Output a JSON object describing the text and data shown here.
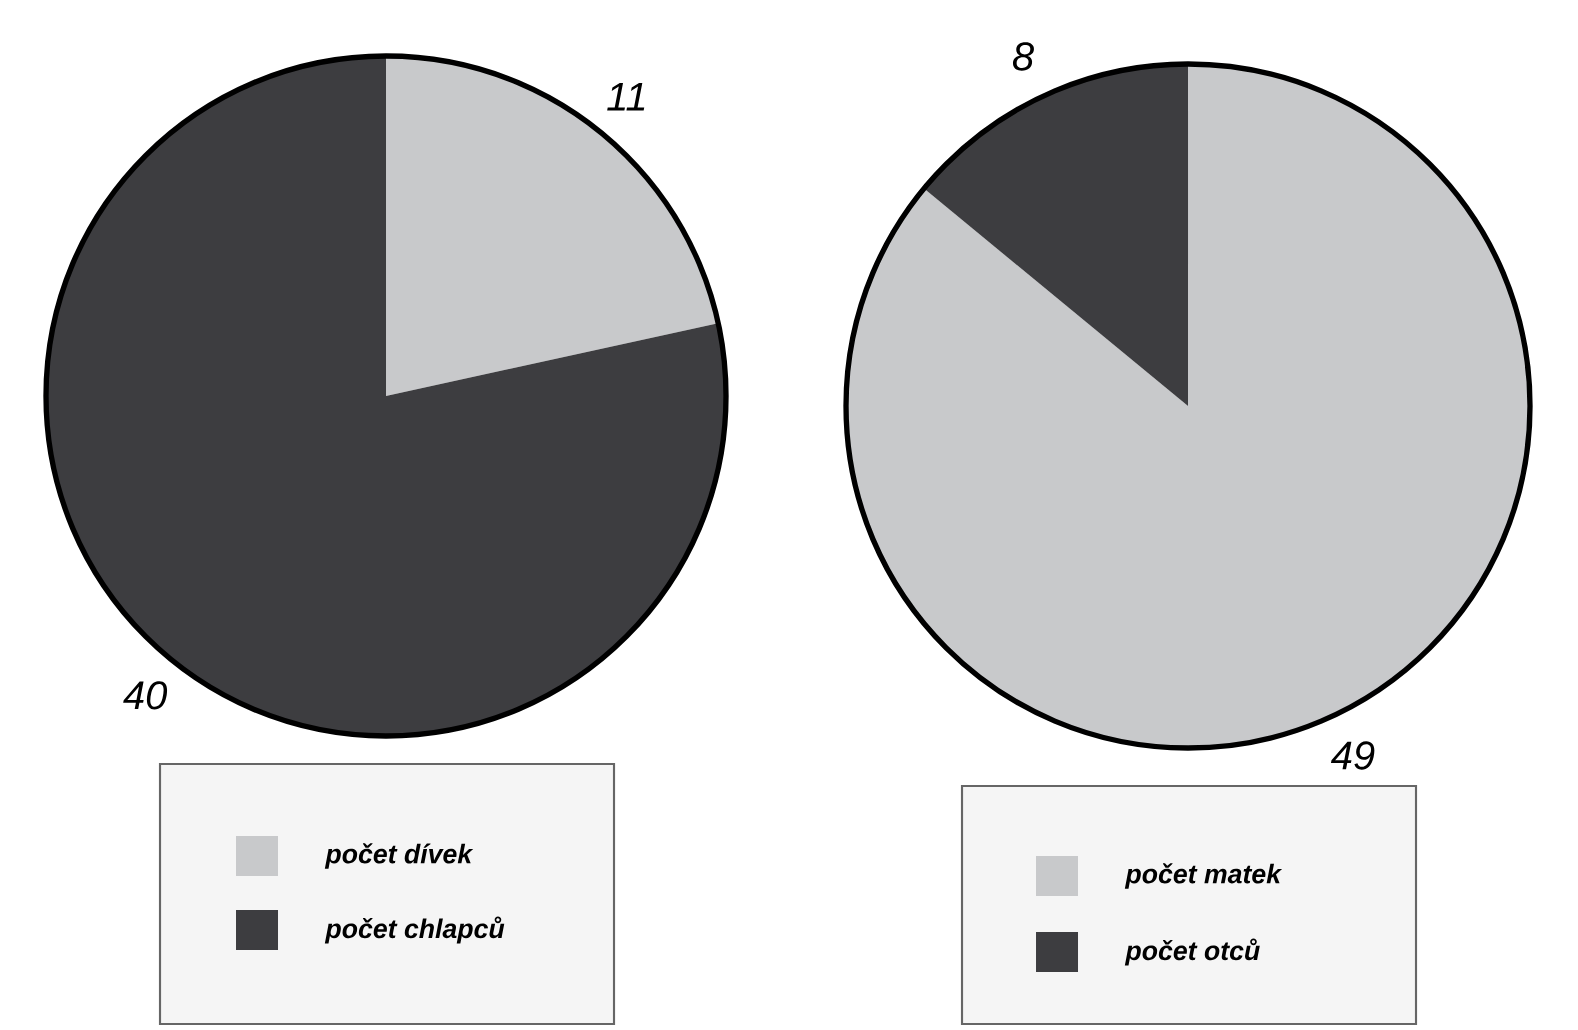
{
  "chart_data": [
    {
      "type": "pie",
      "categories": [
        "počet dívek",
        "počet chlapců"
      ],
      "values": [
        11,
        40
      ],
      "colors": [
        "#c8c9cb",
        "#3d3d40"
      ],
      "data_labels": true,
      "legend": "bottom"
    },
    {
      "type": "pie",
      "categories": [
        "počet matek",
        "počet otců"
      ],
      "values": [
        49,
        8
      ],
      "colors": [
        "#c8c9cb",
        "#3d3d40"
      ],
      "data_labels": true,
      "legend": "bottom"
    }
  ]
}
